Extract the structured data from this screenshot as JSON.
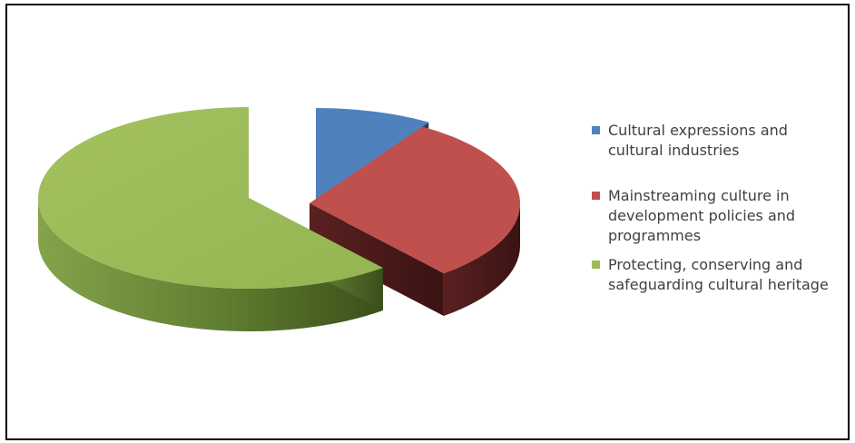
{
  "chart_data": {
    "type": "pie",
    "title": "",
    "style": "3d-exploded",
    "legend_position": "right",
    "slices": [
      {
        "label": "Cultural expressions  and cultural industries",
        "value": 9,
        "color": "#4F81BD",
        "side_color": "#2E4E75"
      },
      {
        "label": "Mainstreaming culture in development policies and programmes",
        "value": 30,
        "color": "#C0504D",
        "side_color": "#4A1B1B"
      },
      {
        "label": "Protecting, conserving and safeguarding cultural heritage",
        "value": 61,
        "color": "#9BBB59",
        "side_color": "#4F6B28"
      }
    ]
  },
  "legend": {
    "items": [
      {
        "label": "Cultural expressions  and\ncultural industries",
        "color": "#4F81BD"
      },
      {
        "label": "Mainstreaming culture in\ndevelopment policies and\nprogrammes",
        "color": "#C0504D"
      },
      {
        "label": "Protecting, conserving and\nsafeguarding cultural heritage",
        "color": "#9BBB59"
      }
    ]
  }
}
